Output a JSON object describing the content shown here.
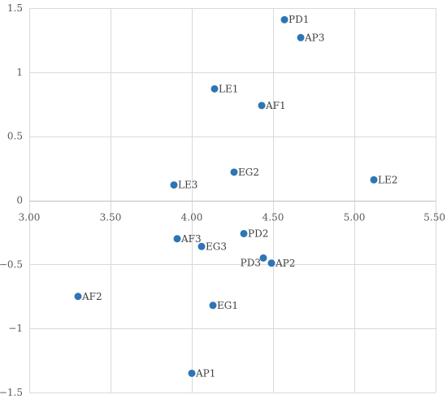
{
  "chart_data": {
    "type": "scatter",
    "title": "",
    "xlabel": "",
    "ylabel": "",
    "xlim": [
      3.0,
      5.5
    ],
    "ylim": [
      -1.5,
      1.5
    ],
    "x_ticks": [
      "3.00",
      "3.50",
      "4.00",
      "4.50",
      "5.00",
      "5.50"
    ],
    "y_ticks": [
      "1.5",
      "1",
      "0.5",
      "0",
      "-0.5",
      "-1",
      "-1.5"
    ],
    "grid": true,
    "marker_color": "#2E75B6",
    "points": [
      {
        "label": "PD1",
        "x": 4.57,
        "y": 1.41
      },
      {
        "label": "AP3",
        "x": 4.67,
        "y": 1.27
      },
      {
        "label": "LE1",
        "x": 4.14,
        "y": 0.87
      },
      {
        "label": "AF1",
        "x": 4.43,
        "y": 0.74
      },
      {
        "label": "EG2",
        "x": 4.26,
        "y": 0.22
      },
      {
        "label": "LE2",
        "x": 5.12,
        "y": 0.16
      },
      {
        "label": "LE3",
        "x": 3.89,
        "y": 0.12
      },
      {
        "label": "PD2",
        "x": 4.32,
        "y": -0.26
      },
      {
        "label": "AF3",
        "x": 3.91,
        "y": -0.3
      },
      {
        "label": "EG3",
        "x": 4.06,
        "y": -0.36
      },
      {
        "label": "PD3",
        "x": 4.44,
        "y": -0.45
      },
      {
        "label": "AP2",
        "x": 4.49,
        "y": -0.49
      },
      {
        "label": "AF2",
        "x": 3.3,
        "y": -0.75
      },
      {
        "label": "EG1",
        "x": 4.13,
        "y": -0.82
      },
      {
        "label": "AP1",
        "x": 4.0,
        "y": -1.35
      }
    ]
  }
}
